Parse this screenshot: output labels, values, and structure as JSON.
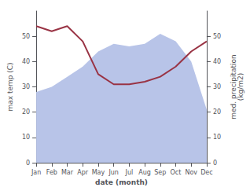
{
  "chart_data": {
    "type": "line",
    "categories": [
      "Jan",
      "Feb",
      "Mar",
      "Apr",
      "May",
      "Jun",
      "Jul",
      "Aug",
      "Sep",
      "Oct",
      "Nov",
      "Dec"
    ],
    "series": [
      {
        "type": "area",
        "color": "#b8c4e8",
        "values": [
          28,
          30,
          34,
          38,
          44,
          47,
          46,
          47,
          51,
          48,
          40,
          21
        ]
      },
      {
        "type": "line",
        "color": "#993344",
        "axis": "y2",
        "values": [
          54,
          52,
          54,
          48,
          35,
          31,
          31,
          32,
          34,
          38,
          44,
          48
        ]
      }
    ],
    "xlabel": "date (month)",
    "ylabel": "max temp (C)",
    "y2label": "med. precipitation\n(kg/m2)",
    "ylim": [
      0,
      60
    ],
    "yticks": [
      0,
      10,
      20,
      30,
      40,
      50
    ],
    "y2lim": [
      0,
      60
    ],
    "y2ticks": [
      0,
      10,
      20,
      30,
      40,
      50
    ],
    "grid": false
  }
}
